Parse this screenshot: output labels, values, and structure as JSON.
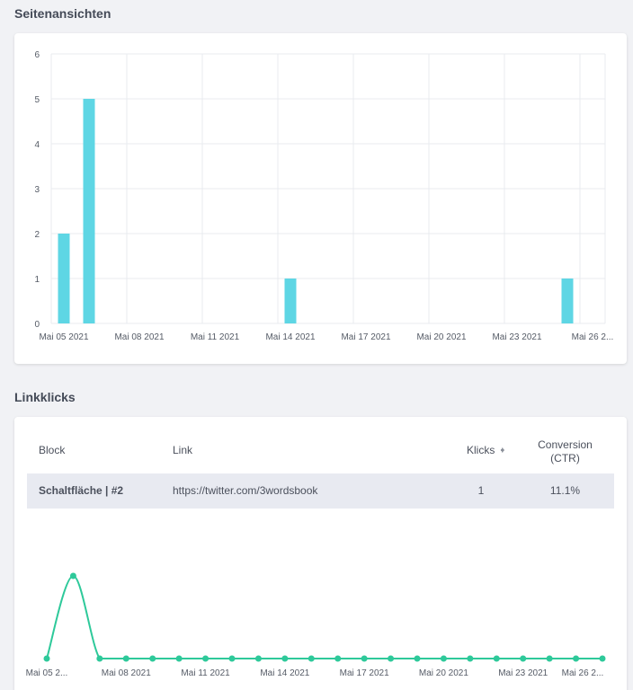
{
  "pageviews": {
    "section_title": "Seitenansichten",
    "chart_data": {
      "type": "bar",
      "x": [
        "Mai 05 2021",
        "Mai 06 2021",
        "Mai 07 2021",
        "Mai 08 2021",
        "Mai 09 2021",
        "Mai 10 2021",
        "Mai 11 2021",
        "Mai 12 2021",
        "Mai 13 2021",
        "Mai 14 2021",
        "Mai 15 2021",
        "Mai 16 2021",
        "Mai 17 2021",
        "Mai 18 2021",
        "Mai 19 2021",
        "Mai 20 2021",
        "Mai 21 2021",
        "Mai 22 2021",
        "Mai 23 2021",
        "Mai 24 2021",
        "Mai 25 2021",
        "Mai 26 2021"
      ],
      "values": [
        2,
        5,
        0,
        0,
        0,
        0,
        0,
        0,
        0,
        1,
        0,
        0,
        0,
        0,
        0,
        0,
        0,
        0,
        0,
        0,
        1,
        0
      ],
      "ylim": [
        0,
        6
      ],
      "yticks": [
        "0",
        "1",
        "2",
        "3",
        "4",
        "5",
        "6"
      ],
      "xticks": [
        "Mai 05 2021",
        "Mai 08 2021",
        "Mai 11 2021",
        "Mai 14 2021",
        "Mai 17 2021",
        "Mai 20 2021",
        "Mai 23 2021",
        "Mai 26 2..."
      ],
      "grid": true,
      "color": "#5ed6e4"
    }
  },
  "linkclicks": {
    "section_title": "Linkklicks",
    "table": {
      "headers": {
        "block": "Block",
        "link": "Link",
        "clicks": "Klicks",
        "conversion_line1": "Conversion",
        "conversion_line2": "(CTR)"
      },
      "sort_icon": "sort-icon",
      "rows": [
        {
          "block": "Schaltfläche | #2",
          "link": "https://twitter.com/3wordsbook",
          "clicks": "1",
          "conversion": "11.1%"
        }
      ]
    },
    "chart_data": {
      "type": "line",
      "x": [
        "Mai 05 2021",
        "Mai 06 2021",
        "Mai 07 2021",
        "Mai 08 2021",
        "Mai 09 2021",
        "Mai 10 2021",
        "Mai 11 2021",
        "Mai 12 2021",
        "Mai 13 2021",
        "Mai 14 2021",
        "Mai 15 2021",
        "Mai 16 2021",
        "Mai 17 2021",
        "Mai 18 2021",
        "Mai 19 2021",
        "Mai 20 2021",
        "Mai 21 2021",
        "Mai 22 2021",
        "Mai 23 2021",
        "Mai 24 2021",
        "Mai 25 2021",
        "Mai 26 2021"
      ],
      "values": [
        0,
        1,
        0,
        0,
        0,
        0,
        0,
        0,
        0,
        0,
        0,
        0,
        0,
        0,
        0,
        0,
        0,
        0,
        0,
        0,
        0,
        0
      ],
      "ylim": [
        0,
        1
      ],
      "xticks": [
        "Mai 05 2...",
        "Mai 08 2021",
        "Mai 11 2021",
        "Mai 14 2021",
        "Mai 17 2021",
        "Mai 20 2021",
        "Mai 23 2021",
        "Mai 26 2..."
      ],
      "grid": false,
      "color": "#2ec99a"
    }
  }
}
